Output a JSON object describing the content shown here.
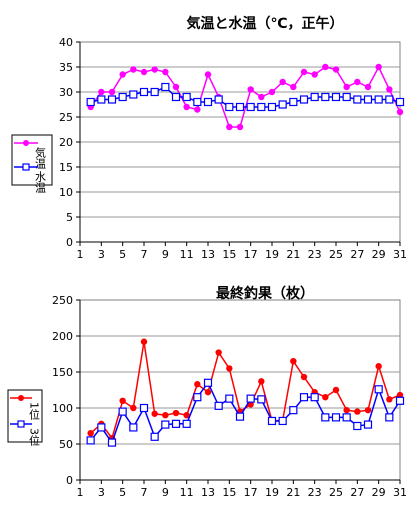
{
  "chart_data": [
    {
      "type": "line",
      "title": "気温と水温（℃，正午）",
      "xlabel": "",
      "ylabel": "",
      "x": [
        2,
        3,
        4,
        5,
        6,
        7,
        8,
        9,
        10,
        11,
        12,
        13,
        14,
        15,
        16,
        17,
        18,
        19,
        20,
        21,
        22,
        23,
        24,
        25,
        26,
        27,
        28,
        29,
        30,
        31
      ],
      "xticks": [
        1,
        3,
        5,
        7,
        9,
        11,
        13,
        15,
        17,
        19,
        21,
        23,
        25,
        27,
        29,
        31
      ],
      "xlim": [
        1,
        31
      ],
      "ylim": [
        0,
        40
      ],
      "yticks": [
        0,
        5,
        10,
        15,
        20,
        25,
        30,
        35,
        40
      ],
      "grid": "horizontal",
      "legend_position": "left",
      "series": [
        {
          "name": "気温",
          "color": "#ff00ff",
          "marker": "filled-circle",
          "values": [
            27,
            30,
            30,
            33.5,
            34.5,
            34,
            34.5,
            34,
            31,
            27,
            26.5,
            33.5,
            29,
            23,
            23,
            30.5,
            29,
            30,
            32,
            31,
            34,
            33.5,
            35,
            34.5,
            31,
            32,
            31,
            35,
            30.5,
            26
          ]
        },
        {
          "name": "水温",
          "color": "#0000ff",
          "marker": "open-square",
          "values": [
            28,
            28.5,
            28.5,
            29,
            29.5,
            30,
            30,
            31,
            29,
            29,
            28,
            28,
            28.5,
            27,
            27,
            27,
            27,
            27,
            27.5,
            28,
            28.5,
            29,
            29,
            29,
            29,
            28.5,
            28.5,
            28.5,
            28.5,
            28
          ]
        }
      ]
    },
    {
      "type": "line",
      "title": "最終釣果（枚）",
      "xlabel": "",
      "ylabel": "",
      "x": [
        2,
        3,
        4,
        5,
        6,
        7,
        8,
        9,
        10,
        11,
        12,
        13,
        14,
        15,
        16,
        17,
        18,
        19,
        20,
        21,
        22,
        23,
        24,
        25,
        26,
        27,
        28,
        29,
        30,
        31
      ],
      "xticks": [
        1,
        3,
        5,
        7,
        9,
        11,
        13,
        15,
        17,
        19,
        21,
        23,
        25,
        27,
        29,
        31
      ],
      "xlim": [
        1,
        31
      ],
      "ylim": [
        0,
        250
      ],
      "yticks": [
        0,
        50,
        100,
        150,
        200,
        250
      ],
      "grid": "horizontal",
      "legend_position": "left",
      "series": [
        {
          "name": "1位",
          "color": "#ff0000",
          "marker": "filled-circle",
          "values": [
            65,
            78,
            58,
            110,
            100,
            192,
            92,
            90,
            93,
            90,
            133,
            122,
            177,
            155,
            95,
            105,
            137,
            82,
            83,
            165,
            143,
            122,
            115,
            125,
            97,
            95,
            97,
            158,
            112,
            118
          ]
        },
        {
          "name": "3位",
          "color": "#0000ff",
          "marker": "open-square",
          "values": [
            55,
            73,
            52,
            95,
            73,
            100,
            60,
            77,
            78,
            78,
            115,
            135,
            103,
            113,
            88,
            113,
            112,
            82,
            82,
            97,
            115,
            115,
            87,
            87,
            87,
            75,
            77,
            126,
            87,
            110
          ]
        }
      ]
    }
  ]
}
